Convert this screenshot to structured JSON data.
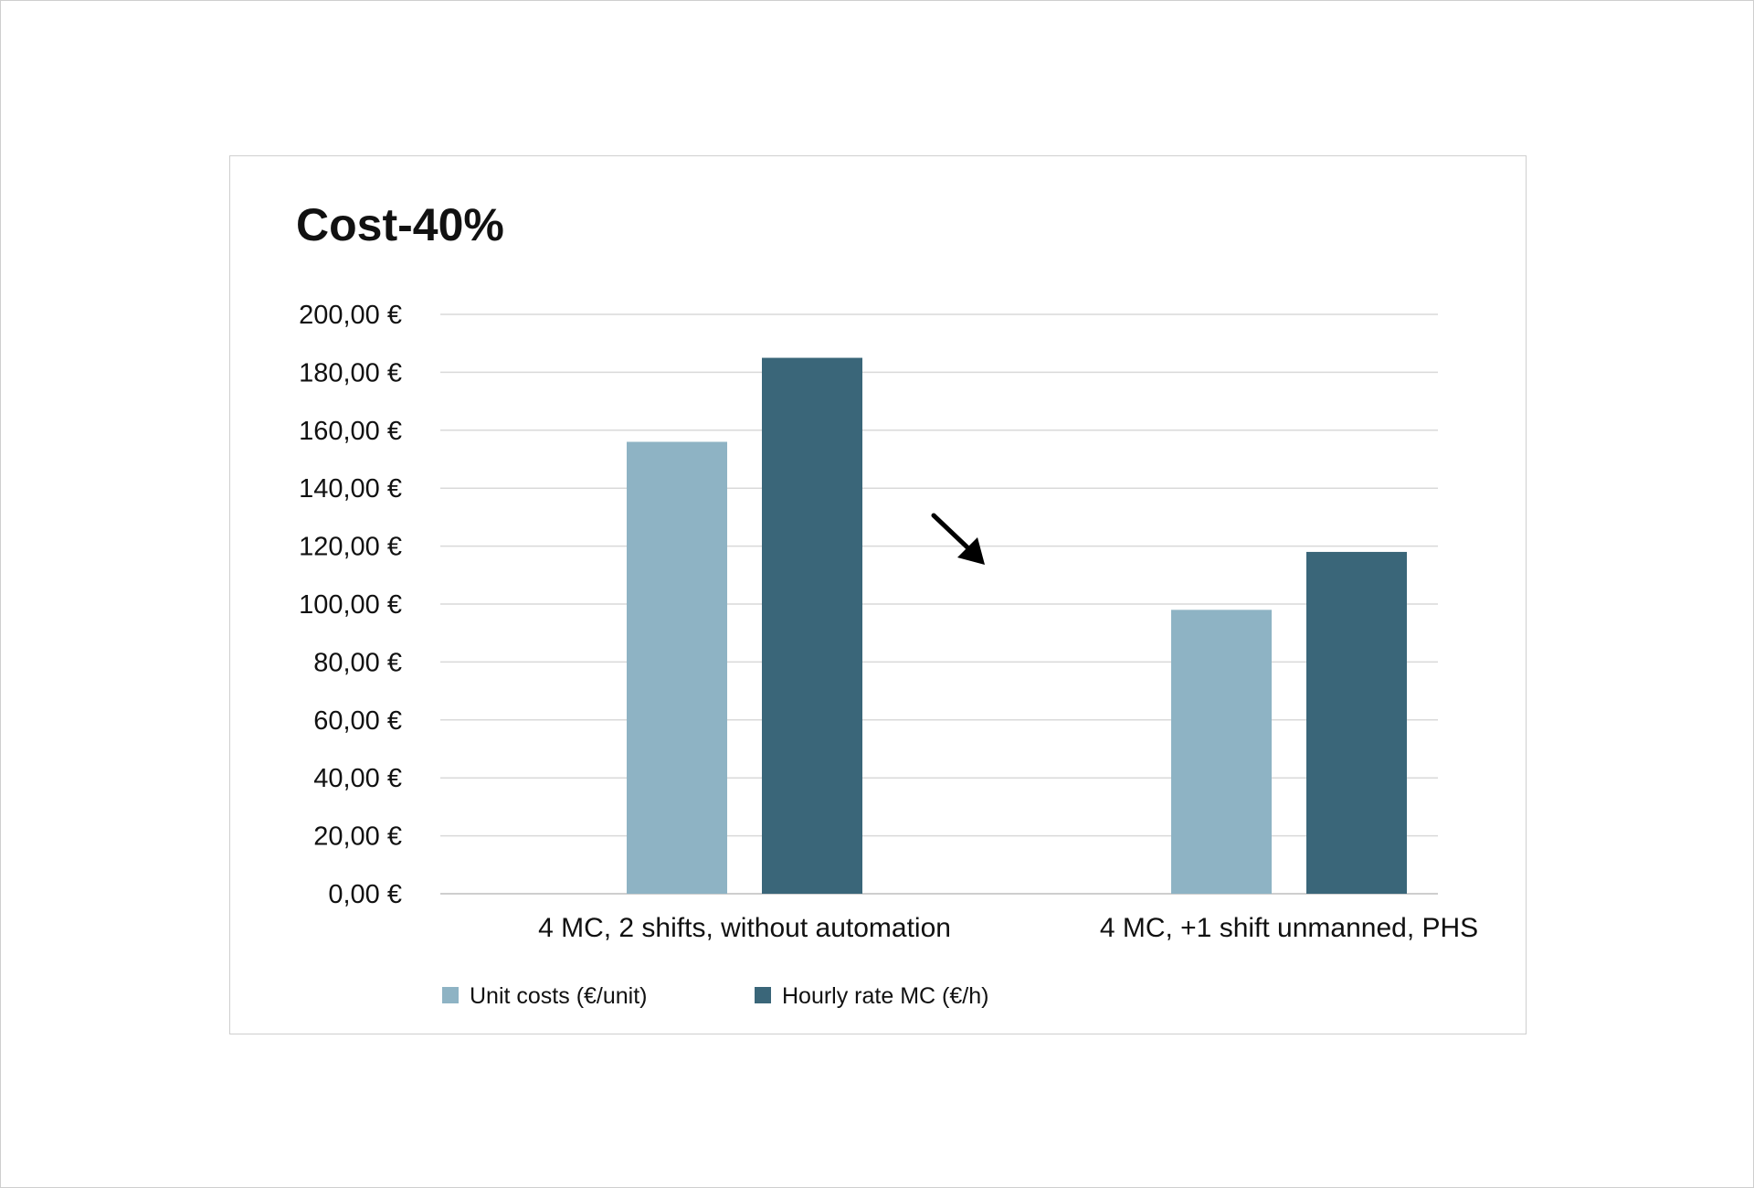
{
  "chart_data": {
    "type": "bar",
    "title": "Cost-40%",
    "categories": [
      "4 MC, 2 shifts, without automation",
      "4 MC, +1 shift unmanned, PHS"
    ],
    "series": [
      {
        "name": "Unit costs (€/unit)",
        "values": [
          156,
          98
        ],
        "color": "#8eb3c4"
      },
      {
        "name": "Hourly rate MC (€/h)",
        "values": [
          185,
          118
        ],
        "color": "#3a6679"
      }
    ],
    "y_ticks": [
      "0,00 €",
      "20,00 €",
      "40,00 €",
      "60,00 €",
      "80,00 €",
      "100,00 €",
      "120,00 €",
      "140,00 €",
      "160,00 €",
      "180,00 €",
      "200,00 €"
    ],
    "ylim": [
      0,
      200
    ],
    "y_step": 20,
    "xlabel": "",
    "ylabel": "",
    "grid": true,
    "legend_position": "bottom-left",
    "annotation": {
      "type": "arrow",
      "direction": "down-right",
      "color": "#000000"
    }
  }
}
